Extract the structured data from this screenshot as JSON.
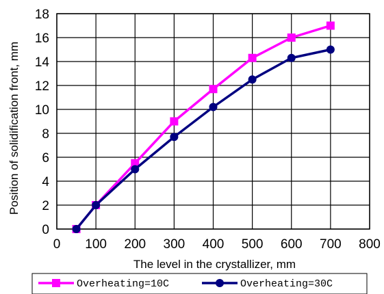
{
  "chart_data": {
    "type": "line",
    "title": "",
    "xlabel": "The level in the crystallizer, mm",
    "ylabel": "Position of solidification front, mm",
    "xlim": [
      0,
      800
    ],
    "ylim": [
      0,
      18
    ],
    "xticks": [
      "0",
      "100",
      "200",
      "300",
      "400",
      "500",
      "600",
      "700",
      "800"
    ],
    "yticks": [
      "0",
      "2",
      "4",
      "6",
      "8",
      "10",
      "12",
      "14",
      "16",
      "18"
    ],
    "grid": true,
    "legend_position": "bottom",
    "series": [
      {
        "name": "Overheating=10C",
        "color": "#ff00ff",
        "marker": "square",
        "x": [
          50,
          100,
          200,
          300,
          400,
          500,
          600,
          700
        ],
        "y": [
          0,
          2,
          5.5,
          9,
          11.7,
          14.3,
          16,
          17
        ]
      },
      {
        "name": "Overheating=30C",
        "color": "#000080",
        "marker": "circle",
        "x": [
          50,
          100,
          200,
          300,
          400,
          500,
          600,
          700
        ],
        "y": [
          0,
          2,
          5,
          7.7,
          10.2,
          12.5,
          14.3,
          15
        ]
      }
    ]
  }
}
